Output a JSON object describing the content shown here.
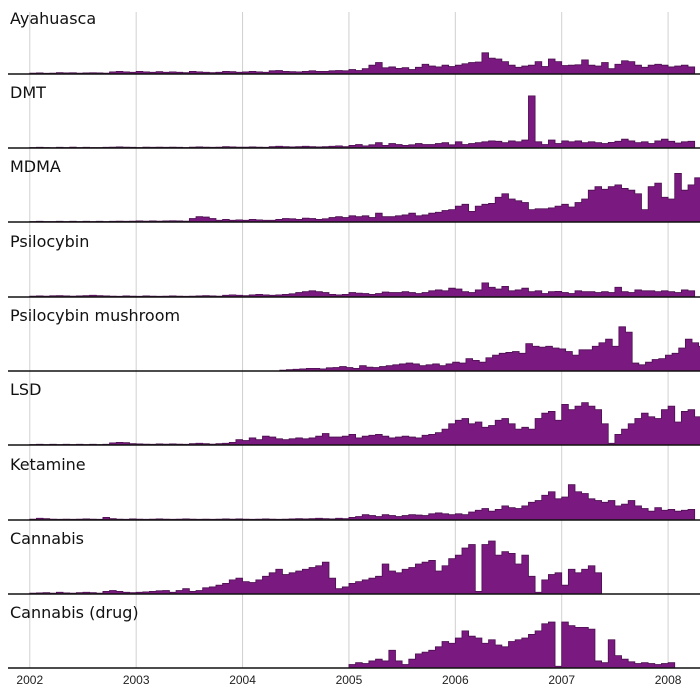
{
  "chart_data": {
    "type": "area",
    "style": "stepped small multiples, shared time axis",
    "grid": true,
    "colors": {
      "fill": "#7a1a80",
      "stroke": "#4a0e4e",
      "grid": "#d0d0d0"
    },
    "x_ticks": [
      "2002",
      "2003",
      "2004",
      "2005",
      "2006",
      "2007",
      "2008"
    ],
    "x_tick_values": [
      2002,
      2003,
      2004,
      2005,
      2006,
      2007,
      2008
    ],
    "xlim": [
      2001.72,
      2008.3
    ],
    "panels": [
      {
        "label": "Ayahuasca",
        "ylim": [
          0,
          30
        ],
        "t0": 2002.0,
        "values": [
          0.5,
          0.6,
          0.4,
          0.5,
          0.8,
          0.6,
          0.7,
          0.5,
          0.6,
          0.7,
          0.6,
          0.5,
          1.2,
          1.5,
          1.2,
          1.0,
          1.5,
          1.2,
          1.0,
          1.3,
          1.0,
          1.2,
          1.0,
          0.8,
          1.5,
          1.2,
          1.0,
          0.8,
          1.0,
          1.5,
          1.3,
          1.0,
          1.2,
          1.5,
          1.2,
          1.0,
          1.8,
          2.0,
          1.5,
          1.3,
          1.2,
          1.5,
          1.8,
          1.5,
          1.5,
          1.8,
          2.0,
          1.8,
          2.5,
          2.0,
          3.0,
          5.0,
          6.5,
          3.5,
          4.0,
          3.2,
          3.6,
          2.5,
          3.8,
          5.5,
          4.5,
          4.0,
          5.0,
          4.2,
          5.0,
          5.8,
          6.5,
          6.8,
          12.0,
          9.0,
          8.5,
          7.0,
          5.0,
          3.8,
          4.5,
          5.0,
          7.0,
          4.2,
          8.5,
          7.0,
          4.8,
          5.0,
          5.2,
          8.0,
          5.0,
          4.5,
          6.5,
          3.0,
          5.5,
          7.5,
          7.0,
          5.0,
          3.8,
          5.0,
          5.5,
          5.0,
          4.0,
          4.5,
          5.0,
          4.0
        ]
      },
      {
        "label": "DMT",
        "ylim": [
          0,
          30
        ],
        "t0": 2002.0,
        "values": [
          0.3,
          0.4,
          0.3,
          0.2,
          0.4,
          0.3,
          0.5,
          0.3,
          0.4,
          0.3,
          0.3,
          0.4,
          0.5,
          0.6,
          0.5,
          0.4,
          0.3,
          0.5,
          0.4,
          0.5,
          0.4,
          0.5,
          0.4,
          0.3,
          0.5,
          0.6,
          0.5,
          0.4,
          0.5,
          0.8,
          0.6,
          0.5,
          0.5,
          0.6,
          0.5,
          0.4,
          0.8,
          1.0,
          0.8,
          0.6,
          0.8,
          1.0,
          0.8,
          0.6,
          0.8,
          1.0,
          1.2,
          0.8,
          1.5,
          2.0,
          1.2,
          1.8,
          3.0,
          1.5,
          2.5,
          2.0,
          1.5,
          1.8,
          2.5,
          2.0,
          2.0,
          2.5,
          3.0,
          1.8,
          3.5,
          2.0,
          2.5,
          3.0,
          3.5,
          4.0,
          3.8,
          3.0,
          4.0,
          3.5,
          4.5,
          29.5,
          3.5,
          2.0,
          4.5,
          2.5,
          4.0,
          3.5,
          4.0,
          3.0,
          3.5,
          3.0,
          2.5,
          3.2,
          3.8,
          5.0,
          4.0,
          3.0,
          3.5,
          2.5,
          4.0,
          5.0,
          3.8,
          2.8,
          3.5,
          3.8
        ]
      },
      {
        "label": "MDMA",
        "ylim": [
          0,
          30
        ],
        "t0": 2002.0,
        "values": [
          0.3,
          0.4,
          0.3,
          0.3,
          0.4,
          0.3,
          0.4,
          0.3,
          0.4,
          0.3,
          0.4,
          0.3,
          0.4,
          0.5,
          0.4,
          0.5,
          0.6,
          0.5,
          0.6,
          0.5,
          0.6,
          0.7,
          0.6,
          0.5,
          2.0,
          3.0,
          2.8,
          2.0,
          1.0,
          1.5,
          1.0,
          1.2,
          1.0,
          1.5,
          1.2,
          1.0,
          1.0,
          1.5,
          2.0,
          1.8,
          1.5,
          2.2,
          2.0,
          1.5,
          1.8,
          2.5,
          3.0,
          2.5,
          3.5,
          3.0,
          3.5,
          2.5,
          5.0,
          3.0,
          3.0,
          3.5,
          4.0,
          5.0,
          3.5,
          4.0,
          5.0,
          5.5,
          6.5,
          7.0,
          9.0,
          10.0,
          6.0,
          9.0,
          10.0,
          10.5,
          14.0,
          16.0,
          13.0,
          12.0,
          11.0,
          7.0,
          7.5,
          7.5,
          8.0,
          9.0,
          10.0,
          8.5,
          11.0,
          13.0,
          18.0,
          20.0,
          18.5,
          20.0,
          21.0,
          19.0,
          18.0,
          16.0,
          7.0,
          20.0,
          22.0,
          14.0,
          13.0,
          27.5,
          18.0,
          21.0,
          25.0,
          27.0
        ]
      },
      {
        "label": "Psilocybin",
        "ylim": [
          0,
          30
        ],
        "t0": 2002.0,
        "values": [
          0.5,
          0.6,
          0.5,
          0.7,
          0.8,
          0.6,
          0.5,
          0.6,
          0.8,
          1.0,
          0.8,
          0.6,
          0.5,
          0.4,
          0.6,
          0.5,
          0.4,
          0.6,
          0.5,
          0.4,
          0.5,
          0.6,
          0.5,
          0.4,
          0.5,
          0.6,
          0.8,
          0.6,
          0.5,
          1.0,
          1.2,
          1.0,
          0.8,
          1.2,
          1.5,
          1.2,
          1.0,
          1.2,
          1.5,
          1.8,
          2.5,
          3.0,
          3.5,
          3.0,
          2.5,
          1.5,
          1.2,
          1.5,
          2.5,
          2.2,
          2.0,
          1.5,
          2.0,
          2.8,
          2.5,
          2.5,
          3.0,
          2.5,
          2.0,
          2.5,
          3.5,
          4.0,
          3.5,
          5.0,
          4.5,
          3.0,
          2.5,
          4.0,
          8.0,
          5.5,
          4.5,
          6.0,
          3.5,
          4.0,
          5.0,
          3.0,
          3.5,
          2.0,
          3.0,
          3.2,
          2.5,
          2.0,
          3.5,
          3.0,
          3.0,
          2.5,
          3.0,
          2.5,
          5.5,
          3.0,
          2.5,
          4.0,
          3.5,
          3.5,
          3.0,
          3.5,
          3.0,
          2.5,
          4.0,
          3.5
        ]
      },
      {
        "label": "Psilocybin mushroom",
        "ylim": [
          0,
          30
        ],
        "t0": 2004.35,
        "values": [
          0.5,
          0.8,
          1.0,
          1.2,
          1.5,
          1.5,
          1.2,
          1.8,
          2.0,
          2.5,
          2.0,
          1.5,
          3.0,
          2.2,
          2.0,
          2.5,
          3.0,
          3.5,
          4.0,
          4.5,
          4.0,
          3.0,
          3.5,
          4.0,
          3.0,
          4.0,
          5.0,
          4.5,
          7.0,
          6.0,
          5.0,
          7.5,
          9.0,
          10.0,
          10.5,
          11.0,
          10.0,
          15.5,
          14.0,
          13.5,
          14.0,
          13.0,
          12.5,
          11.0,
          9.0,
          12.0,
          12.0,
          14.0,
          16.0,
          18.0,
          14.0,
          25.0,
          22.0,
          4.5,
          3.5,
          5.0,
          6.5,
          7.0,
          9.0,
          10.0,
          13.0,
          18.0,
          16.0,
          14.0,
          15.0,
          17.0,
          14.0,
          16.0
        ]
      },
      {
        "label": "LSD",
        "ylim": [
          0,
          30
        ],
        "t0": 2002.0,
        "values": [
          0.3,
          0.4,
          0.3,
          0.4,
          0.3,
          0.4,
          0.3,
          0.4,
          0.3,
          0.4,
          0.3,
          0.4,
          1.2,
          1.5,
          1.3,
          0.8,
          0.6,
          0.5,
          0.4,
          0.6,
          0.5,
          0.6,
          0.5,
          0.4,
          0.8,
          1.0,
          0.8,
          0.5,
          0.8,
          1.0,
          1.5,
          3.0,
          2.5,
          4.0,
          3.0,
          5.0,
          4.5,
          3.5,
          3.0,
          3.5,
          4.0,
          3.5,
          4.0,
          5.0,
          6.5,
          4.5,
          4.5,
          5.0,
          6.0,
          4.0,
          5.0,
          5.5,
          6.0,
          5.0,
          4.0,
          4.5,
          5.0,
          4.5,
          4.0,
          5.5,
          6.0,
          7.0,
          9.0,
          12.0,
          14.0,
          15.0,
          12.0,
          13.0,
          10.0,
          11.0,
          14.0,
          15.0,
          12.0,
          9.0,
          10.0,
          9.0,
          15.0,
          18.0,
          19.0,
          14.0,
          23.0,
          20.0,
          22.0,
          24.0,
          22.0,
          20.0,
          12.0,
          1.0,
          6.0,
          9.0,
          12.0,
          15.0,
          18.0,
          16.0,
          15.0,
          20.0,
          22.0,
          13.0,
          19.0,
          20.0,
          16.0,
          15.0
        ]
      },
      {
        "label": "Ketamine",
        "ylim": [
          0,
          30
        ],
        "t0": 2002.0,
        "values": [
          0.5,
          1.0,
          0.8,
          0.5,
          0.4,
          0.5,
          0.4,
          0.5,
          0.6,
          0.5,
          0.4,
          1.5,
          0.8,
          0.5,
          0.4,
          0.6,
          0.5,
          0.4,
          0.5,
          0.6,
          0.5,
          0.4,
          0.5,
          0.6,
          0.5,
          0.4,
          0.5,
          0.4,
          0.5,
          0.6,
          0.5,
          0.6,
          0.5,
          0.4,
          0.5,
          0.6,
          0.5,
          0.4,
          0.5,
          0.6,
          0.8,
          0.6,
          0.8,
          1.0,
          0.8,
          0.6,
          1.0,
          0.8,
          1.5,
          2.0,
          3.0,
          2.5,
          2.0,
          3.0,
          2.5,
          2.0,
          2.5,
          3.0,
          2.8,
          2.5,
          3.5,
          4.0,
          3.5,
          3.0,
          3.5,
          3.0,
          4.5,
          5.5,
          6.5,
          5.0,
          6.0,
          8.0,
          7.0,
          6.5,
          8.0,
          10.0,
          11.0,
          14.0,
          16.0,
          12.0,
          13.0,
          20.0,
          16.0,
          15.0,
          12.0,
          11.0,
          10.0,
          11.0,
          8.0,
          9.0,
          11.0,
          8.0,
          6.5,
          5.0,
          7.0,
          5.5,
          6.0,
          5.0,
          5.5,
          6.0
        ]
      },
      {
        "label": "Cannabis",
        "ylim": [
          0,
          30
        ],
        "t0": 2002.0,
        "values": [
          0.5,
          0.6,
          0.8,
          0.5,
          1.0,
          0.6,
          0.5,
          0.8,
          1.0,
          0.8,
          0.5,
          1.5,
          2.0,
          1.5,
          1.0,
          0.8,
          1.0,
          1.2,
          1.5,
          1.8,
          2.0,
          1.0,
          2.0,
          3.0,
          1.5,
          2.0,
          3.5,
          4.0,
          5.0,
          6.0,
          8.0,
          9.0,
          7.0,
          6.5,
          8.0,
          10.0,
          12.0,
          14.0,
          11.0,
          12.0,
          13.0,
          14.0,
          15.0,
          16.0,
          18.0,
          9.0,
          3.0,
          4.0,
          6.0,
          7.0,
          8.0,
          9.0,
          10.0,
          17.0,
          13.0,
          12.0,
          14.0,
          15.0,
          17.0,
          18.0,
          19.0,
          13.0,
          16.0,
          20.0,
          22.0,
          26.0,
          28.0,
          1.5,
          28.0,
          30.5,
          22.0,
          24.0,
          23.0,
          17.0,
          22.0,
          10.0,
          1.0,
          8.0,
          11.0,
          12.0,
          5.0,
          14.0,
          12.0,
          14.0,
          16.0,
          12.0
        ]
      },
      {
        "label": "Cannabis (drug)",
        "ylim": [
          0,
          30
        ],
        "t0": 2005.0,
        "values": [
          2.0,
          3.0,
          2.5,
          4.0,
          5.0,
          4.0,
          10.0,
          4.0,
          2.0,
          5.0,
          8.0,
          9.0,
          10.0,
          12.0,
          15.0,
          14.0,
          17.0,
          21.0,
          18.0,
          17.0,
          14.0,
          16.0,
          13.0,
          12.0,
          15.0,
          16.0,
          17.0,
          19.0,
          21.0,
          25.0,
          26.0,
          1.0,
          26.0,
          24.0,
          23.0,
          23.0,
          22.0,
          4.0,
          3.0,
          16.0,
          7.0,
          5.0,
          3.5,
          2.5,
          3.0,
          2.5,
          2.0,
          2.5,
          3.0
        ]
      }
    ]
  }
}
